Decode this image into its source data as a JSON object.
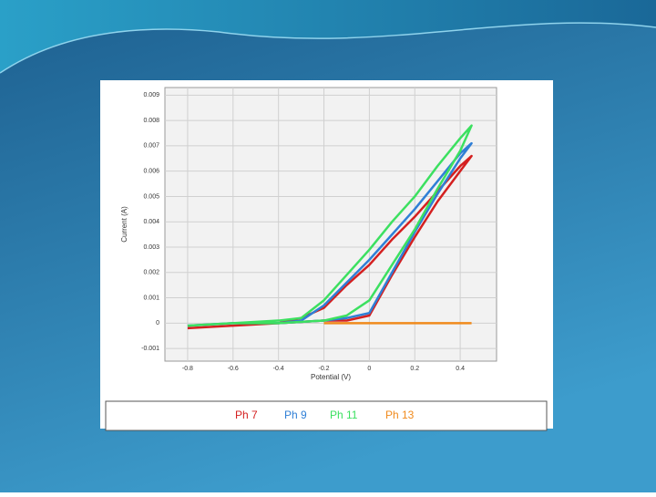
{
  "chart_data": {
    "type": "line",
    "xlabel": "Potential (V)",
    "ylabel": "Current (A)",
    "xlim": [
      -0.9,
      0.56
    ],
    "ylim": [
      -0.0015,
      0.0093
    ],
    "xticks": [
      -0.8,
      -0.6,
      -0.4,
      -0.2,
      0,
      0.2,
      0.4
    ],
    "yticks": [
      -0.001,
      0,
      0.001,
      0.002,
      0.003,
      0.004,
      0.005,
      0.006,
      0.007,
      0.008,
      0.009
    ],
    "grid": true,
    "series": [
      {
        "name": "Ph 7",
        "color": "#d42020",
        "x": [
          -0.8,
          -0.6,
          -0.4,
          -0.2,
          -0.1,
          0,
          0.1,
          0.2,
          0.3,
          0.4,
          0.45,
          0.4,
          0.3,
          0.2,
          0.1,
          0,
          -0.1,
          -0.2,
          -0.3,
          -0.4,
          -0.6,
          -0.8
        ],
        "values": [
          -0.0002,
          -0.0001,
          0.0,
          0.0001,
          0.0001,
          0.0003,
          0.0019,
          0.0034,
          0.0048,
          0.006,
          0.0066,
          0.0062,
          0.0052,
          0.0042,
          0.0033,
          0.0023,
          0.0015,
          0.0006,
          0.0002,
          0.0,
          -0.0001,
          -0.0002
        ]
      },
      {
        "name": "Ph 9",
        "color": "#2f7fd6",
        "x": [
          -0.8,
          -0.6,
          -0.4,
          -0.2,
          -0.1,
          0,
          0.1,
          0.2,
          0.3,
          0.4,
          0.45,
          0.4,
          0.3,
          0.2,
          0.1,
          0,
          -0.1,
          -0.2,
          -0.3,
          -0.4,
          -0.6,
          -0.8
        ],
        "values": [
          -0.0001,
          0.0,
          0.0,
          0.0001,
          0.0002,
          0.0004,
          0.002,
          0.0036,
          0.0051,
          0.0065,
          0.0071,
          0.0067,
          0.0056,
          0.0045,
          0.0035,
          0.0025,
          0.0016,
          0.0007,
          0.0001,
          0.0,
          0.0,
          -0.0001
        ]
      },
      {
        "name": "Ph 11",
        "color": "#3ce060",
        "x": [
          -0.8,
          -0.6,
          -0.4,
          -0.2,
          -0.1,
          0,
          0.1,
          0.2,
          0.3,
          0.4,
          0.45,
          0.4,
          0.3,
          0.2,
          0.1,
          0,
          -0.1,
          -0.2,
          -0.3,
          -0.4,
          -0.6,
          -0.8
        ],
        "values": [
          -0.0001,
          0.0,
          0.0,
          0.0001,
          0.0003,
          0.0009,
          0.0023,
          0.0037,
          0.0053,
          0.0068,
          0.0078,
          0.0073,
          0.0062,
          0.005,
          0.004,
          0.0029,
          0.0019,
          0.0009,
          0.0002,
          0.0001,
          0.0,
          -0.0001
        ]
      },
      {
        "name": "Ph 13",
        "color": "#f08a1c",
        "x": [
          -0.2,
          0,
          0.2,
          0.45
        ],
        "values": [
          0.0,
          0.0,
          0.0,
          0.0
        ]
      }
    ]
  }
}
